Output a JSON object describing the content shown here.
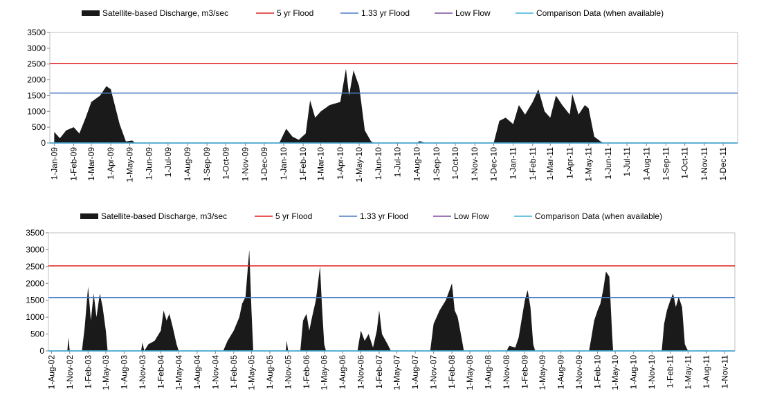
{
  "chart_data": [
    {
      "type": "area",
      "series": [
        {
          "name": "Satellite-based Discharge, m3/sec",
          "color": "#1a1a1a",
          "x": [
            "2009-01-01",
            "2009-01-10",
            "2009-01-20",
            "2009-02-01",
            "2009-02-10",
            "2009-02-20",
            "2009-03-01",
            "2009-03-15",
            "2009-03-25",
            "2009-04-01",
            "2009-04-15",
            "2009-04-25",
            "2009-05-05",
            "2009-05-10",
            "2009-12-25",
            "2010-01-05",
            "2010-01-15",
            "2010-01-25",
            "2010-02-05",
            "2010-02-12",
            "2010-02-20",
            "2010-03-01",
            "2010-03-15",
            "2010-04-01",
            "2010-04-10",
            "2010-04-15",
            "2010-04-22",
            "2010-05-01",
            "2010-05-10",
            "2010-05-20",
            "2010-05-25",
            "2010-08-01",
            "2010-08-05",
            "2010-08-15",
            "2010-12-01",
            "2010-12-10",
            "2010-12-20",
            "2011-01-01",
            "2011-01-10",
            "2011-01-20",
            "2011-02-01",
            "2011-02-10",
            "2011-02-20",
            "2011-03-01",
            "2011-03-10",
            "2011-03-20",
            "2011-04-01",
            "2011-04-05",
            "2011-04-15",
            "2011-04-25",
            "2011-05-01",
            "2011-05-10",
            "2011-05-20",
            "2011-05-25",
            "2011-12-24"
          ],
          "values": [
            350,
            150,
            400,
            500,
            300,
            800,
            1300,
            1500,
            1800,
            1700,
            600,
            50,
            80,
            0,
            0,
            450,
            200,
            100,
            300,
            1350,
            800,
            1000,
            1200,
            1300,
            2350,
            1500,
            2300,
            1800,
            400,
            50,
            0,
            0,
            60,
            0,
            0,
            700,
            800,
            600,
            1200,
            900,
            1300,
            1700,
            1000,
            800,
            1500,
            1200,
            900,
            1550,
            900,
            1200,
            1100,
            200,
            50,
            0,
            0
          ]
        }
      ],
      "reference_lines": [
        {
          "name": "5 yr Flood",
          "color": "#e02020",
          "value": 2520
        },
        {
          "name": "1.33 yr Flood",
          "color": "#4a7cc4",
          "value": 1580
        },
        {
          "name": "Low Flow",
          "color": "#7d4a9e",
          "value": 0
        },
        {
          "name": "Comparison Data (when available)",
          "color": "#3cb4d8",
          "value": 0
        }
      ],
      "xlim": [
        "2008-12-25",
        "2011-12-24"
      ],
      "xticks": [
        {
          "value": "2009-01-01",
          "label": "1-Jan-09"
        },
        {
          "value": "2009-02-01",
          "label": "1-Feb-09"
        },
        {
          "value": "2009-03-01",
          "label": "1-Mar-09"
        },
        {
          "value": "2009-04-01",
          "label": "1-Apr-09"
        },
        {
          "value": "2009-05-01",
          "label": "1-May-09"
        },
        {
          "value": "2009-06-01",
          "label": "1-Jun-09"
        },
        {
          "value": "2009-07-01",
          "label": "1-Jul-09"
        },
        {
          "value": "2009-08-01",
          "label": "1-Aug-09"
        },
        {
          "value": "2009-09-01",
          "label": "1-Sep-09"
        },
        {
          "value": "2009-10-01",
          "label": "1-Oct-09"
        },
        {
          "value": "2009-11-01",
          "label": "1-Nov-09"
        },
        {
          "value": "2009-12-01",
          "label": "1-Dec-09"
        },
        {
          "value": "2010-01-01",
          "label": "1-Jan-10"
        },
        {
          "value": "2010-02-01",
          "label": "1-Feb-10"
        },
        {
          "value": "2010-03-01",
          "label": "1-Mar-10"
        },
        {
          "value": "2010-04-01",
          "label": "1-Apr-10"
        },
        {
          "value": "2010-05-01",
          "label": "1-May-10"
        },
        {
          "value": "2010-06-01",
          "label": "1-Jun-10"
        },
        {
          "value": "2010-07-01",
          "label": "1-Jul-10"
        },
        {
          "value": "2010-08-01",
          "label": "1-Aug-10"
        },
        {
          "value": "2010-09-01",
          "label": "1-Sep-10"
        },
        {
          "value": "2010-10-01",
          "label": "1-Oct-10"
        },
        {
          "value": "2010-11-01",
          "label": "1-Nov-10"
        },
        {
          "value": "2010-12-01",
          "label": "1-Dec-10"
        },
        {
          "value": "2011-01-01",
          "label": "1-Jan-11"
        },
        {
          "value": "2011-02-01",
          "label": "1-Feb-11"
        },
        {
          "value": "2011-03-01",
          "label": "1-Mar-11"
        },
        {
          "value": "2011-04-01",
          "label": "1-Apr-11"
        },
        {
          "value": "2011-05-01",
          "label": "1-May-11"
        },
        {
          "value": "2011-06-01",
          "label": "1-Jun-11"
        },
        {
          "value": "2011-07-01",
          "label": "1-Jul-11"
        },
        {
          "value": "2011-08-01",
          "label": "1-Aug-11"
        },
        {
          "value": "2011-09-01",
          "label": "1-Sep-11"
        },
        {
          "value": "2011-10-01",
          "label": "1-Oct-11"
        },
        {
          "value": "2011-11-01",
          "label": "1-Nov-11"
        },
        {
          "value": "2011-12-01",
          "label": "1-Dec-11"
        }
      ],
      "ylim": [
        0,
        3500
      ],
      "yticks": [
        0,
        500,
        1000,
        1500,
        2000,
        2500,
        3000,
        3500
      ],
      "legend": "top"
    },
    {
      "type": "area",
      "series": [
        {
          "name": "Satellite-based Discharge, m3/sec",
          "color": "#1a1a1a",
          "x": [
            "2002-07-17",
            "2002-10-20",
            "2002-10-25",
            "2002-11-01",
            "2003-01-01",
            "2003-01-15",
            "2003-02-01",
            "2003-02-15",
            "2003-03-01",
            "2003-03-15",
            "2003-04-01",
            "2003-04-15",
            "2003-05-01",
            "2003-05-10",
            "2003-10-25",
            "2003-11-01",
            "2003-11-10",
            "2003-12-01",
            "2004-01-01",
            "2004-02-01",
            "2004-02-15",
            "2004-03-01",
            "2004-03-15",
            "2004-04-01",
            "2004-04-20",
            "2004-05-01",
            "2004-12-10",
            "2005-01-01",
            "2005-02-01",
            "2005-02-15",
            "2005-03-01",
            "2005-03-15",
            "2005-04-01",
            "2005-04-20",
            "2005-05-01",
            "2005-05-10",
            "2005-10-20",
            "2005-10-25",
            "2005-11-01",
            "2006-01-01",
            "2006-01-15",
            "2006-02-01",
            "2006-02-15",
            "2006-03-01",
            "2006-03-20",
            "2006-04-10",
            "2006-04-20",
            "2006-05-01",
            "2006-05-10",
            "2006-10-15",
            "2006-11-01",
            "2006-11-20",
            "2006-12-10",
            "2007-01-01",
            "2007-01-20",
            "2007-02-01",
            "2007-02-15",
            "2007-03-15",
            "2007-04-01",
            "2007-10-15",
            "2007-11-01",
            "2007-12-01",
            "2008-01-01",
            "2008-01-20",
            "2008-02-01",
            "2008-02-15",
            "2008-03-01",
            "2008-03-20",
            "2008-04-01",
            "2008-11-01",
            "2008-11-15",
            "2008-12-15",
            "2009-01-01",
            "2009-01-15",
            "2009-02-01",
            "2009-02-15",
            "2009-03-01",
            "2009-03-15",
            "2009-03-25",
            "2009-12-20",
            "2010-01-01",
            "2010-01-15",
            "2010-02-01",
            "2010-02-15",
            "2010-03-01",
            "2010-03-15",
            "2010-04-01",
            "2010-04-15",
            "2010-04-20",
            "2010-12-20",
            "2011-01-01",
            "2011-01-15",
            "2011-02-01",
            "2011-02-15",
            "2011-03-01",
            "2011-03-15",
            "2011-04-01",
            "2011-04-15",
            "2011-05-01",
            "2011-12-22"
          ],
          "values": [
            0,
            0,
            400,
            0,
            0,
            700,
            1900,
            900,
            1700,
            1000,
            1700,
            1300,
            600,
            0,
            0,
            250,
            0,
            200,
            300,
            600,
            1200,
            900,
            1100,
            700,
            200,
            0,
            0,
            300,
            600,
            800,
            1000,
            1400,
            1600,
            3000,
            1200,
            0,
            0,
            300,
            0,
            0,
            900,
            1100,
            600,
            1000,
            1500,
            2500,
            1300,
            200,
            0,
            0,
            600,
            300,
            500,
            100,
            600,
            1200,
            500,
            200,
            0,
            0,
            800,
            1200,
            1500,
            1800,
            2000,
            1200,
            1000,
            400,
            0,
            0,
            150,
            100,
            400,
            900,
            1500,
            1800,
            1300,
            200,
            0,
            0,
            400,
            900,
            1200,
            1400,
            1800,
            2350,
            2200,
            500,
            0,
            0,
            800,
            1200,
            1500,
            1700,
            1300,
            1600,
            1300,
            200,
            0,
            0
          ]
        }
      ],
      "reference_lines": [
        {
          "name": "5 yr Flood",
          "color": "#e02020",
          "value": 2520
        },
        {
          "name": "1.33 yr Flood",
          "color": "#4a7cc4",
          "value": 1580
        },
        {
          "name": "Low Flow",
          "color": "#7d4a9e",
          "value": 0
        },
        {
          "name": "Comparison Data (when available)",
          "color": "#3cb4d8",
          "value": 0
        }
      ],
      "xlim": [
        "2002-07-17",
        "2011-12-22"
      ],
      "xticks": [
        {
          "value": "2002-08-01",
          "label": "1-Aug-02"
        },
        {
          "value": "2002-11-01",
          "label": "1-Nov-02"
        },
        {
          "value": "2003-02-01",
          "label": "1-Feb-03"
        },
        {
          "value": "2003-05-01",
          "label": "1-May-03"
        },
        {
          "value": "2003-08-01",
          "label": "1-Aug-03"
        },
        {
          "value": "2003-11-01",
          "label": "1-Nov-03"
        },
        {
          "value": "2004-02-01",
          "label": "1-Feb-04"
        },
        {
          "value": "2004-05-01",
          "label": "1-May-04"
        },
        {
          "value": "2004-08-01",
          "label": "1-Aug-04"
        },
        {
          "value": "2004-11-01",
          "label": "1-Nov-04"
        },
        {
          "value": "2005-02-01",
          "label": "1-Feb-05"
        },
        {
          "value": "2005-05-01",
          "label": "1-May-05"
        },
        {
          "value": "2005-08-01",
          "label": "1-Aug-05"
        },
        {
          "value": "2005-11-01",
          "label": "1-Nov-05"
        },
        {
          "value": "2006-02-01",
          "label": "1-Feb-06"
        },
        {
          "value": "2006-05-01",
          "label": "1-May-06"
        },
        {
          "value": "2006-08-01",
          "label": "1-Aug-06"
        },
        {
          "value": "2006-11-01",
          "label": "1-Nov-06"
        },
        {
          "value": "2007-02-01",
          "label": "1-Feb-07"
        },
        {
          "value": "2007-05-01",
          "label": "1-May-07"
        },
        {
          "value": "2007-08-01",
          "label": "1-Aug-07"
        },
        {
          "value": "2007-11-01",
          "label": "1-Nov-07"
        },
        {
          "value": "2008-02-01",
          "label": "1-Feb-08"
        },
        {
          "value": "2008-05-01",
          "label": "1-May-08"
        },
        {
          "value": "2008-08-01",
          "label": "1-Aug-08"
        },
        {
          "value": "2008-11-01",
          "label": "1-Nov-08"
        },
        {
          "value": "2009-02-01",
          "label": "1-Feb-09"
        },
        {
          "value": "2009-05-01",
          "label": "1-May-09"
        },
        {
          "value": "2009-08-01",
          "label": "1-Aug-09"
        },
        {
          "value": "2009-11-01",
          "label": "1-Nov-09"
        },
        {
          "value": "2010-02-01",
          "label": "1-Feb-10"
        },
        {
          "value": "2010-05-01",
          "label": "1-May-10"
        },
        {
          "value": "2010-08-01",
          "label": "1-Aug-10"
        },
        {
          "value": "2010-11-01",
          "label": "1-Nov-10"
        },
        {
          "value": "2011-02-01",
          "label": "1-Feb-11"
        },
        {
          "value": "2011-05-01",
          "label": "1-May-11"
        },
        {
          "value": "2011-08-01",
          "label": "1-Aug-11"
        },
        {
          "value": "2011-11-01",
          "label": "1-Nov-11"
        }
      ],
      "ylim": [
        0,
        3500
      ],
      "yticks": [
        0,
        500,
        1000,
        1500,
        2000,
        2500,
        3000,
        3500
      ],
      "legend": "top"
    }
  ]
}
